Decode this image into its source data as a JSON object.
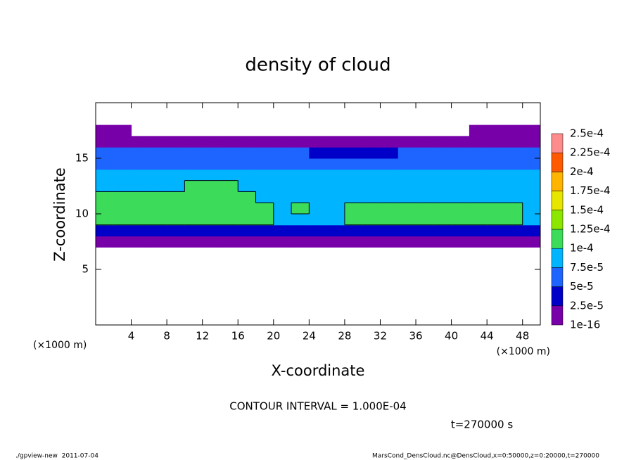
{
  "chart_data": {
    "type": "contour",
    "title": "density of cloud",
    "xlabel": "X-coordinate",
    "ylabel": "Z-coordinate",
    "x_unit_left": "(×1000 m)",
    "x_unit_right": "(×1000 m)",
    "contour_interval": {
      "value": 0.0001,
      "label": "CONTOUR INTERVAL = 1.000E-04"
    },
    "time_label": "t=270000 s",
    "footer_left": "./gpview-new  2011-07-04",
    "footer_right": "MarsCond_DensCloud.nc@DensCloud,x=0:50000,z=0:20000,t=270000",
    "xlim": [
      0,
      50
    ],
    "ylim": [
      0,
      20
    ],
    "xticks": [
      4,
      8,
      12,
      16,
      20,
      24,
      28,
      32,
      36,
      40,
      44,
      48
    ],
    "yticks": [
      5,
      10,
      15
    ],
    "x_edges": [
      0,
      2,
      4,
      6,
      8,
      10,
      12,
      14,
      16,
      18,
      20,
      22,
      24,
      26,
      28,
      30,
      32,
      34,
      36,
      38,
      40,
      42,
      44,
      46,
      48,
      50
    ],
    "z_edges": [
      7,
      8,
      9,
      10,
      11,
      12,
      13,
      14,
      15,
      16,
      17,
      18
    ],
    "z_values": [
      [
        1.5e-05,
        1.5e-05,
        1.5e-05,
        1.5e-05,
        1.5e-05,
        1.5e-05,
        1.5e-05,
        1.5e-05,
        1.5e-05,
        1.5e-05,
        1.5e-05,
        1.5e-05,
        1.5e-05,
        1.5e-05,
        1.5e-05,
        1.5e-05,
        1.5e-05,
        1.5e-05,
        1.5e-05,
        1.5e-05,
        1.5e-05,
        1.5e-05,
        1.5e-05,
        1.5e-05,
        1.5e-05
      ],
      [
        4e-05,
        3.5e-05,
        4e-05,
        4e-05,
        3.5e-05,
        4e-05,
        4e-05,
        4e-05,
        3.5e-05,
        4e-05,
        4e-05,
        3.5e-05,
        4e-05,
        4e-05,
        3.5e-05,
        4e-05,
        4e-05,
        4e-05,
        3.5e-05,
        4e-05,
        4e-05,
        3.5e-05,
        4e-05,
        4e-05,
        4e-05
      ],
      [
        0.000105,
        0.000105,
        0.000105,
        0.000105,
        0.000105,
        0.000105,
        0.000105,
        0.000105,
        0.000105,
        0.000105,
        8.5e-05,
        8.5e-05,
        8.5e-05,
        8.5e-05,
        0.000102,
        0.000102,
        0.000102,
        0.000102,
        0.000102,
        0.000102,
        0.000102,
        0.000102,
        0.000102,
        0.000102,
        9e-05
      ],
      [
        0.000115,
        0.000115,
        0.000115,
        0.000115,
        0.00012,
        0.00012,
        0.00012,
        0.00012,
        0.00012,
        0.00011,
        9.5e-05,
        0.000101,
        9.5e-05,
        9.5e-05,
        0.000105,
        0.000105,
        0.000105,
        0.000105,
        0.000105,
        0.000105,
        0.000105,
        0.000105,
        0.000105,
        0.000105,
        9.5e-05
      ],
      [
        0.000102,
        0.000102,
        0.000102,
        0.00011,
        0.00011,
        0.00011,
        0.00011,
        0.00011,
        0.00011,
        9e-05,
        8.5e-05,
        8.5e-05,
        8.5e-05,
        8.5e-05,
        8.5e-05,
        8.5e-05,
        8.5e-05,
        8.5e-05,
        8.5e-05,
        8.5e-05,
        8.5e-05,
        8.5e-05,
        8.5e-05,
        8.5e-05,
        8e-05
      ],
      [
        8e-05,
        8e-05,
        8e-05,
        8e-05,
        8e-05,
        0.000102,
        0.000102,
        0.000102,
        8e-05,
        8e-05,
        8e-05,
        8e-05,
        8e-05,
        8e-05,
        8e-05,
        8e-05,
        8e-05,
        8e-05,
        8e-05,
        8e-05,
        8e-05,
        8e-05,
        8e-05,
        8e-05,
        8e-05
      ],
      [
        7.8e-05,
        7.8e-05,
        7.8e-05,
        7.8e-05,
        7.8e-05,
        7.8e-05,
        7.8e-05,
        7.8e-05,
        7.8e-05,
        7.8e-05,
        7.8e-05,
        7.8e-05,
        7.8e-05,
        7.8e-05,
        7.8e-05,
        7.8e-05,
        7.8e-05,
        7.8e-05,
        7.8e-05,
        7.8e-05,
        7.8e-05,
        7.8e-05,
        7.8e-05,
        7.8e-05,
        7.8e-05
      ],
      [
        6.5e-05,
        6.5e-05,
        6.5e-05,
        6.5e-05,
        6.5e-05,
        6.5e-05,
        6.5e-05,
        6.5e-05,
        6.5e-05,
        6.5e-05,
        6.5e-05,
        6.5e-05,
        6.5e-05,
        6.5e-05,
        6.5e-05,
        6.5e-05,
        6.5e-05,
        6.5e-05,
        6.5e-05,
        6.5e-05,
        6.5e-05,
        6.5e-05,
        6.5e-05,
        6.5e-05,
        6.5e-05
      ],
      [
        5.5e-05,
        5.5e-05,
        5.5e-05,
        5.5e-05,
        5.5e-05,
        5.5e-05,
        5.5e-05,
        5.5e-05,
        5.5e-05,
        5.5e-05,
        5.5e-05,
        5.5e-05,
        4.5e-05,
        4.5e-05,
        4.5e-05,
        4.5e-05,
        4.5e-05,
        5.5e-05,
        5.5e-05,
        5.5e-05,
        5.5e-05,
        5.5e-05,
        5.5e-05,
        5.5e-05,
        5.5e-05
      ],
      [
        1.5e-05,
        1.5e-05,
        1.5e-05,
        1.5e-05,
        1.5e-05,
        1.5e-05,
        1.5e-05,
        1.5e-05,
        1.5e-05,
        1.5e-05,
        1.5e-05,
        1.5e-05,
        1.5e-05,
        1.5e-05,
        1.5e-05,
        1.5e-05,
        1.5e-05,
        1.5e-05,
        1.5e-05,
        1.5e-05,
        1.5e-05,
        1.5e-05,
        1.5e-05,
        1.5e-05,
        1.5e-05
      ],
      [
        1.2e-05,
        1.2e-05,
        null,
        null,
        null,
        null,
        null,
        null,
        null,
        null,
        null,
        null,
        null,
        null,
        null,
        null,
        null,
        null,
        null,
        null,
        null,
        1.2e-05,
        1.2e-05,
        1.2e-05,
        1.2e-05
      ]
    ],
    "levels": [
      {
        "value": 1e-16,
        "label": "1e-16"
      },
      {
        "value": 2.5e-05,
        "label": "2.5e-5"
      },
      {
        "value": 5e-05,
        "label": "5e-5"
      },
      {
        "value": 7.5e-05,
        "label": "7.5e-5"
      },
      {
        "value": 0.0001,
        "label": "1e-4"
      },
      {
        "value": 0.000125,
        "label": "1.25e-4"
      },
      {
        "value": 0.00015,
        "label": "1.5e-4"
      },
      {
        "value": 0.000175,
        "label": "1.75e-4"
      },
      {
        "value": 0.0002,
        "label": "2e-4"
      },
      {
        "value": 0.000225,
        "label": "2.25e-4"
      },
      {
        "value": 0.00025,
        "label": "2.5e-4"
      }
    ],
    "colors": [
      "#7800a8",
      "#0000c8",
      "#1e64ff",
      "#00b4ff",
      "#3cdc5a",
      "#8ce600",
      "#e6e600",
      "#ffb400",
      "#ff5a00",
      "#ff8c8c"
    ]
  }
}
